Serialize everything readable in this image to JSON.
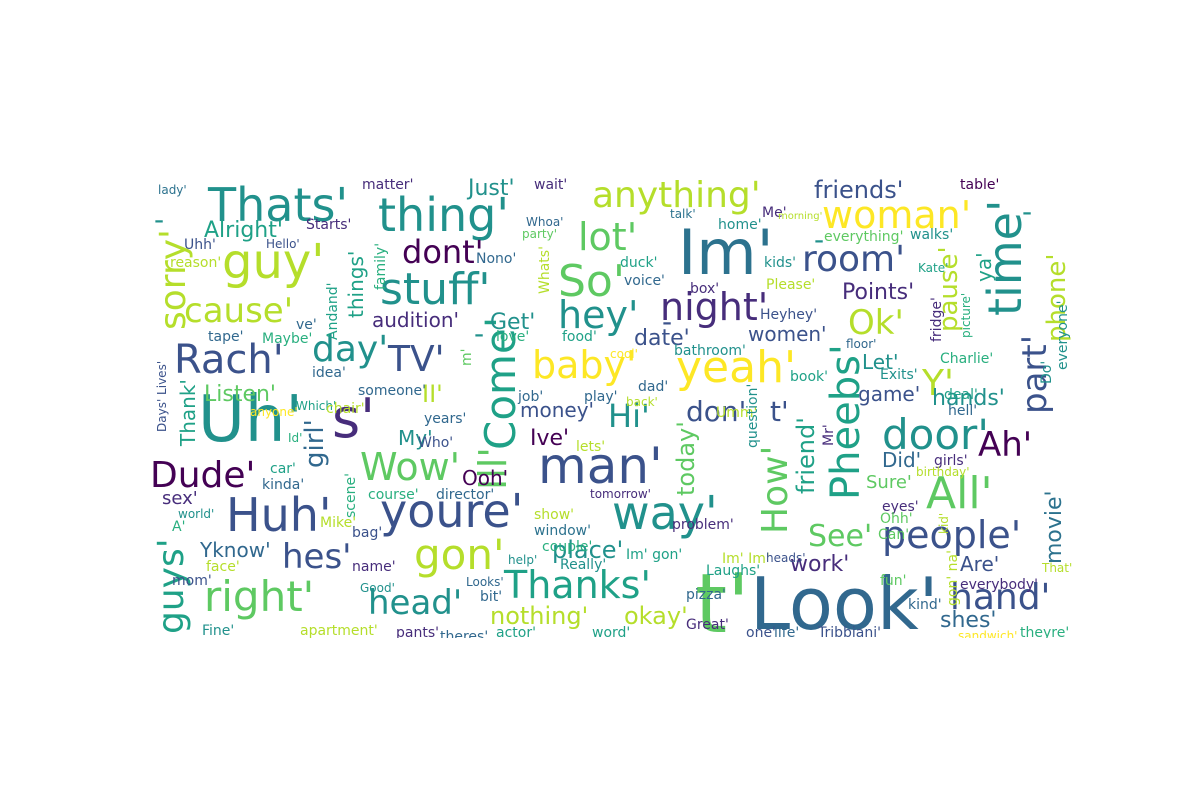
{
  "palette": {
    "background": "#ffffff",
    "c1": "#440154",
    "c2": "#3b528b",
    "c3": "#21918c",
    "c4": "#5ec962",
    "c5": "#fde725",
    "c6": "#2c728e",
    "c7": "#a0da39",
    "c8": "#31688e",
    "c9": "#1fa187",
    "c10": "#b5de2b",
    "c11": "#472d7b",
    "c12": "#29af7f"
  },
  "words": [
    {
      "t": "Look'"
    },
    {
      "t": "t'"
    },
    {
      "t": "Im'"
    },
    {
      "t": "Uh'"
    },
    {
      "t": "man'"
    },
    {
      "t": "youre'"
    },
    {
      "t": "way'"
    },
    {
      "t": "thing'"
    },
    {
      "t": "Thats'"
    },
    {
      "t": "guy'"
    },
    {
      "t": "stuff'"
    },
    {
      "t": "So'"
    },
    {
      "t": "time'"
    },
    {
      "t": "yeah'"
    },
    {
      "t": "Come'"
    },
    {
      "t": "All'"
    },
    {
      "t": "Huh'"
    },
    {
      "t": "s'"
    },
    {
      "t": "Pheebs'"
    },
    {
      "t": "door'"
    },
    {
      "t": "gon'"
    },
    {
      "t": "right'"
    },
    {
      "t": "Thanks'"
    },
    {
      "t": "people'"
    },
    {
      "t": "night'"
    },
    {
      "t": "hey'"
    },
    {
      "t": "Rach'"
    },
    {
      "t": "baby'"
    },
    {
      "t": "Wow'"
    },
    {
      "t": "anything'"
    },
    {
      "t": "woman'"
    },
    {
      "t": "room'"
    },
    {
      "t": "lot'"
    },
    {
      "t": "cause'"
    },
    {
      "t": "sorry'"
    },
    {
      "t": "How'"
    },
    {
      "t": "hand'"
    },
    {
      "t": "head'"
    },
    {
      "t": "Ok'"
    },
    {
      "t": "Dude'"
    },
    {
      "t": "day'"
    },
    {
      "t": "TV'"
    },
    {
      "t": "Ah'"
    },
    {
      "t": "part'"
    },
    {
      "t": "Y'"
    },
    {
      "t": "hes'"
    },
    {
      "t": "guys'"
    },
    {
      "t": "See'"
    },
    {
      "t": "Hi'"
    },
    {
      "t": "dont'"
    },
    {
      "t": "Ill'"
    },
    {
      "t": "don'"
    },
    {
      "t": "t'"
    },
    {
      "t": "friends'"
    },
    {
      "t": "phone'"
    },
    {
      "t": "pause'"
    },
    {
      "t": "girl'"
    },
    {
      "t": "friend'"
    },
    {
      "t": "today'"
    },
    {
      "t": "place'"
    },
    {
      "t": "nothing'"
    },
    {
      "t": "okay'"
    },
    {
      "t": "movie'"
    },
    {
      "t": "Ive'"
    },
    {
      "t": "money'"
    },
    {
      "t": "Alright'"
    },
    {
      "t": "Listen'"
    },
    {
      "t": "Points'"
    },
    {
      "t": "work'"
    },
    {
      "t": "hands'"
    },
    {
      "t": "shes'"
    },
    {
      "t": "Are'"
    },
    {
      "t": "things'"
    },
    {
      "t": "audition'"
    },
    {
      "t": "Get'"
    },
    {
      "t": "date'"
    },
    {
      "t": "women'"
    },
    {
      "t": "Let'"
    },
    {
      "t": "game'"
    },
    {
      "t": "Ooh'"
    },
    {
      "t": "My'"
    },
    {
      "t": "II'"
    },
    {
      "t": "Did'"
    },
    {
      "t": "Sure'"
    },
    {
      "t": "Yknow'"
    },
    {
      "t": "Just'"
    },
    {
      "t": "sex'"
    },
    {
      "t": "Thank'"
    },
    {
      "t": "ya'"
    },
    {
      "t": "-"
    },
    {
      "t": "-"
    },
    {
      "t": "-"
    },
    {
      "t": "-"
    },
    {
      "t": "-"
    },
    {
      "t": "face'"
    },
    {
      "t": "name'"
    },
    {
      "t": "kinda'"
    },
    {
      "t": "problem'"
    },
    {
      "t": "Please'"
    },
    {
      "t": "voice'"
    },
    {
      "t": "matter'"
    },
    {
      "t": "wait'"
    },
    {
      "t": "table'"
    },
    {
      "t": "lady'"
    },
    {
      "t": "Starts'"
    },
    {
      "t": "Uhh'"
    },
    {
      "t": "Hello'"
    },
    {
      "t": "Nono'"
    },
    {
      "t": "Whats'"
    },
    {
      "t": "Whoa'"
    },
    {
      "t": "party'"
    },
    {
      "t": "talk'"
    },
    {
      "t": "home'"
    },
    {
      "t": "Me'"
    },
    {
      "t": "morning'"
    },
    {
      "t": "everything'"
    },
    {
      "t": "walks'"
    },
    {
      "t": "kids'"
    },
    {
      "t": "duck'"
    },
    {
      "t": "box'"
    },
    {
      "t": "Heyhey'"
    },
    {
      "t": "Kate'"
    },
    {
      "t": "fridge'"
    },
    {
      "t": "picture'"
    },
    {
      "t": "everyone'"
    },
    {
      "t": "reason'"
    },
    {
      "t": "family'"
    },
    {
      "t": "Andand'"
    },
    {
      "t": "ve'"
    },
    {
      "t": "tape'"
    },
    {
      "t": "Maybe'"
    },
    {
      "t": "love'"
    },
    {
      "t": "food'"
    },
    {
      "t": "bathroom'"
    },
    {
      "t": "floor'"
    },
    {
      "t": "cool'"
    },
    {
      "t": "Charlie'"
    },
    {
      "t": "Do'"
    },
    {
      "t": "deal'"
    },
    {
      "t": "idea'"
    },
    {
      "t": "someone'"
    },
    {
      "t": "dad'"
    },
    {
      "t": "book'"
    },
    {
      "t": "Exits'"
    },
    {
      "t": "job'"
    },
    {
      "t": "play'"
    },
    {
      "t": "back'"
    },
    {
      "t": "Umm'"
    },
    {
      "t": "hell'"
    },
    {
      "t": "Which'"
    },
    {
      "t": "chair'"
    },
    {
      "t": "years'"
    },
    {
      "t": "anyone'"
    },
    {
      "t": "Days' Lives'"
    },
    {
      "t": "Id'"
    },
    {
      "t": "Who'"
    },
    {
      "t": "lets'"
    },
    {
      "t": "question'"
    },
    {
      "t": "Mr'"
    },
    {
      "t": "girls'"
    },
    {
      "t": "birthday'"
    },
    {
      "t": "car'"
    },
    {
      "t": "course'"
    },
    {
      "t": "director'"
    },
    {
      "t": "tomorrow'"
    },
    {
      "t": "eyes'"
    },
    {
      "t": "Ohh'"
    },
    {
      "t": "world'"
    },
    {
      "t": "scene'"
    },
    {
      "t": "A'"
    },
    {
      "t": "Mike'"
    },
    {
      "t": "bag'"
    },
    {
      "t": "show'"
    },
    {
      "t": "window'"
    },
    {
      "t": "Can'"
    },
    {
      "t": "Im' gon'"
    },
    {
      "t": "Laughs'"
    },
    {
      "t": "Im' Im'"
    },
    {
      "t": "heads'"
    },
    {
      "t": "kid'"
    },
    {
      "t": "That'"
    },
    {
      "t": "mom'"
    },
    {
      "t": "help'"
    },
    {
      "t": "Really'"
    },
    {
      "t": "couple'"
    },
    {
      "t": "fun'"
    },
    {
      "t": "everybody'"
    },
    {
      "t": "Good'"
    },
    {
      "t": "Looks'"
    },
    {
      "t": "bit'"
    },
    {
      "t": "pizza'"
    },
    {
      "t": "kind'"
    },
    {
      "t": "gon' na'"
    },
    {
      "t": "Fine'"
    },
    {
      "t": "apartment'"
    },
    {
      "t": "pants'"
    },
    {
      "t": "theres'"
    },
    {
      "t": "actor'"
    },
    {
      "t": "word'"
    },
    {
      "t": "Great'"
    },
    {
      "t": "one'"
    },
    {
      "t": "life'"
    },
    {
      "t": "Tribbiani'"
    },
    {
      "t": "sandwich'"
    },
    {
      "t": "theyre'"
    },
    {
      "t": "m'"
    }
  ]
}
